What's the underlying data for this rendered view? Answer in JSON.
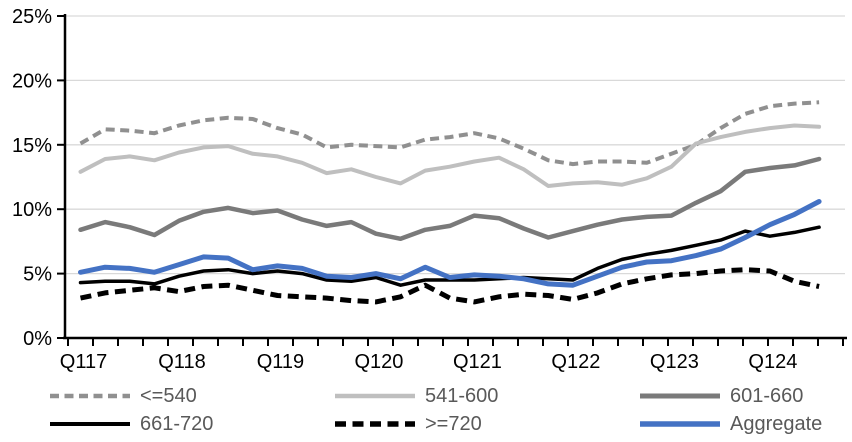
{
  "chart_data": {
    "type": "line",
    "title": "",
    "xlabel": "",
    "ylabel": "",
    "ylim": [
      0,
      25
    ],
    "y_tick_labels": [
      "0%",
      "5%",
      "10%",
      "15%",
      "20%",
      "25%"
    ],
    "y_tick_values": [
      0,
      5,
      10,
      15,
      20,
      25
    ],
    "grid": "horizontal",
    "legend_position": "bottom",
    "categories": [
      "Q117",
      "Q217",
      "Q317",
      "Q417",
      "Q118",
      "Q218",
      "Q318",
      "Q418",
      "Q119",
      "Q219",
      "Q319",
      "Q419",
      "Q120",
      "Q220",
      "Q320",
      "Q420",
      "Q121",
      "Q221",
      "Q321",
      "Q421",
      "Q122",
      "Q222",
      "Q322",
      "Q422",
      "Q123",
      "Q223",
      "Q323",
      "Q423",
      "Q124",
      "Q224",
      "Q324"
    ],
    "x_axis_labels_shown": [
      "Q117",
      "Q118",
      "Q119",
      "Q120",
      "Q121",
      "Q122",
      "Q123",
      "Q124"
    ],
    "x_axis_label_indices": [
      0,
      4,
      8,
      12,
      16,
      20,
      24,
      28
    ],
    "series": [
      {
        "name": "<=540",
        "color": "#909090",
        "style": "dashed",
        "values": [
          15.1,
          16.2,
          16.1,
          15.9,
          16.5,
          16.9,
          17.1,
          17.0,
          16.3,
          15.8,
          14.8,
          15.0,
          14.9,
          14.8,
          15.4,
          15.6,
          15.9,
          15.5,
          14.7,
          13.8,
          13.5,
          13.7,
          13.7,
          13.6,
          14.3,
          15.0,
          16.3,
          17.4,
          18.0,
          18.2,
          18.3
        ]
      },
      {
        "name": "541-600",
        "color": "#bfbfbf",
        "style": "solid",
        "values": [
          12.9,
          13.9,
          14.1,
          13.8,
          14.4,
          14.8,
          14.9,
          14.3,
          14.1,
          13.6,
          12.8,
          13.1,
          12.5,
          12.0,
          13.0,
          13.3,
          13.7,
          14.0,
          13.1,
          11.8,
          12.0,
          12.1,
          11.9,
          12.4,
          13.3,
          15.1,
          15.6,
          16.0,
          16.3,
          16.5,
          16.4
        ]
      },
      {
        "name": "601-660",
        "color": "#7a7a7a",
        "style": "solid",
        "values": [
          8.4,
          9.0,
          8.6,
          8.0,
          9.1,
          9.8,
          10.1,
          9.7,
          9.9,
          9.2,
          8.7,
          9.0,
          8.1,
          7.7,
          8.4,
          8.7,
          9.5,
          9.3,
          8.5,
          7.8,
          8.3,
          8.8,
          9.2,
          9.4,
          9.5,
          10.5,
          11.4,
          12.9,
          13.2,
          13.4,
          13.9
        ]
      },
      {
        "name": "661-720",
        "color": "#000000",
        "style": "solid",
        "values": [
          4.3,
          4.4,
          4.4,
          4.2,
          4.8,
          5.2,
          5.3,
          5.0,
          5.2,
          5.0,
          4.5,
          4.4,
          4.7,
          4.1,
          4.5,
          4.5,
          4.5,
          4.6,
          4.7,
          4.6,
          4.5,
          5.4,
          6.1,
          6.5,
          6.8,
          7.2,
          7.6,
          8.3,
          7.9,
          8.2,
          8.6
        ]
      },
      {
        "name": ">=720",
        "color": "#000000",
        "style": "dashed",
        "values": [
          3.1,
          3.5,
          3.7,
          3.9,
          3.6,
          4.0,
          4.1,
          3.7,
          3.3,
          3.2,
          3.1,
          2.9,
          2.8,
          3.2,
          4.1,
          3.1,
          2.8,
          3.2,
          3.4,
          3.3,
          3.0,
          3.5,
          4.2,
          4.6,
          4.9,
          5.0,
          5.2,
          5.3,
          5.2,
          4.4,
          4.0
        ]
      },
      {
        "name": "Aggregate",
        "color": "#4472c4",
        "style": "solid",
        "values": [
          5.1,
          5.5,
          5.4,
          5.1,
          5.7,
          6.3,
          6.2,
          5.3,
          5.6,
          5.4,
          4.8,
          4.7,
          5.0,
          4.6,
          5.5,
          4.7,
          4.9,
          4.8,
          4.6,
          4.2,
          4.1,
          4.8,
          5.5,
          5.9,
          6.0,
          6.4,
          6.9,
          7.8,
          8.8,
          9.6,
          10.6
        ]
      }
    ],
    "colors": {
      "gridline": "#d9d9d9",
      "axis": "#000000",
      "axis_label_text": "#000000",
      "legend_text": "#595959",
      "accent_blue": "#4472c4"
    }
  }
}
